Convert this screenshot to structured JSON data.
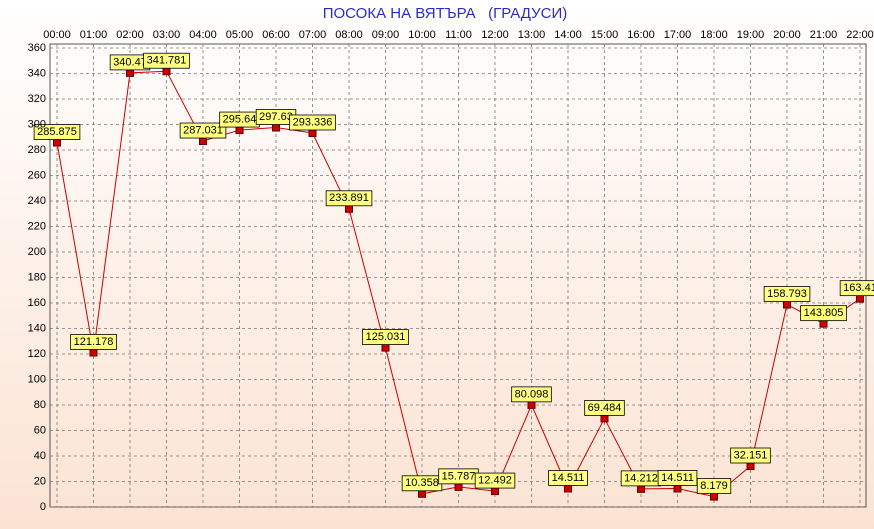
{
  "chart_data": {
    "type": "line",
    "title": "ПОСОКА НА ВЯТЪРА   (ГРАДУСИ)",
    "categories": [
      "00:00",
      "01:00",
      "02:00",
      "03:00",
      "04:00",
      "05:00",
      "06:00",
      "07:00",
      "08:00",
      "09:00",
      "10:00",
      "11:00",
      "12:00",
      "13:00",
      "14:00",
      "15:00",
      "16:00",
      "17:00",
      "18:00",
      "19:00",
      "20:00",
      "21:00",
      "22:00"
    ],
    "series": [
      {
        "name": null,
        "color": "#cc0000",
        "values": [
          285.875,
          121.178,
          340.47,
          341.781,
          287.031,
          295.64,
          297.63,
          293.336,
          233.891,
          125.031,
          10.358,
          15.787,
          12.492,
          80.098,
          14.511,
          69.484,
          14.212,
          14.511,
          8.179,
          32.151,
          158.793,
          143.805,
          163.41
        ]
      }
    ],
    "ylim": [
      0,
      360
    ],
    "yticks": [
      0,
      20,
      40,
      60,
      80,
      100,
      120,
      140,
      160,
      180,
      200,
      220,
      240,
      260,
      280,
      300,
      320,
      340,
      360
    ],
    "grid": true
  }
}
